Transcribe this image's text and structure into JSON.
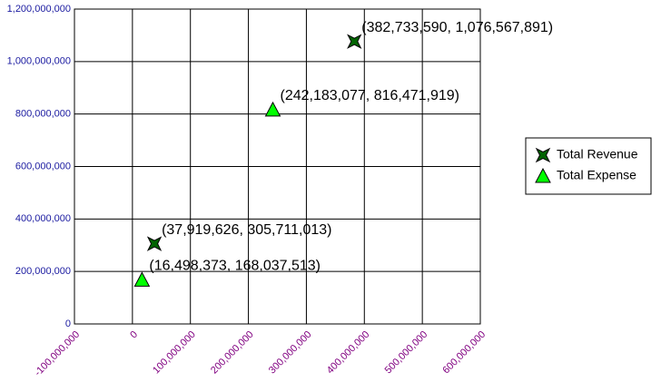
{
  "chart_data": {
    "type": "scatter",
    "series": [
      {
        "name": "Total Revenue",
        "color": "#006400",
        "marker": "star",
        "x": [
          37919626,
          382733590
        ],
        "values": [
          305711013,
          1076567891
        ],
        "value_labels": [
          "(37,919,626, 305,711,013)",
          "(382,733,590, 1,076,567,891)"
        ]
      },
      {
        "name": "Total Expense",
        "color": "#00ff00",
        "marker": "triangle",
        "x": [
          16498373,
          242183077
        ],
        "values": [
          168037513,
          816471919
        ],
        "value_labels": [
          "(16,498,373, 168,037,513)",
          "(242,183,077, 816,471,919)"
        ]
      }
    ],
    "xlim": [
      -100000000,
      600000000
    ],
    "xticks": [
      {
        "value": -100000000,
        "label": "-100,000,000"
      },
      0,
      {
        "value": 100000000,
        "label": "100,000,000"
      },
      {
        "value": 200000000,
        "label": "200,000,000"
      },
      {
        "value": 300000000,
        "label": "300,000,000"
      },
      {
        "value": 400000000,
        "label": "400,000,000"
      },
      {
        "value": 500000000,
        "label": "500,000,000"
      },
      {
        "value": 600000000,
        "label": "600,000,000"
      }
    ],
    "ylim": [
      0,
      1200000000
    ],
    "yticks": [
      0,
      {
        "value": 200000000,
        "label": "200,000,000"
      },
      {
        "value": 400000000,
        "label": "400,000,000"
      },
      {
        "value": 600000000,
        "label": "600,000,000"
      },
      {
        "value": 800000000,
        "label": "800,000,000"
      },
      {
        "value": 1000000000,
        "label": "1,000,000,000"
      },
      {
        "value": 1200000000,
        "label": "1,200,000,000"
      }
    ],
    "grid": true,
    "legend": "right"
  }
}
